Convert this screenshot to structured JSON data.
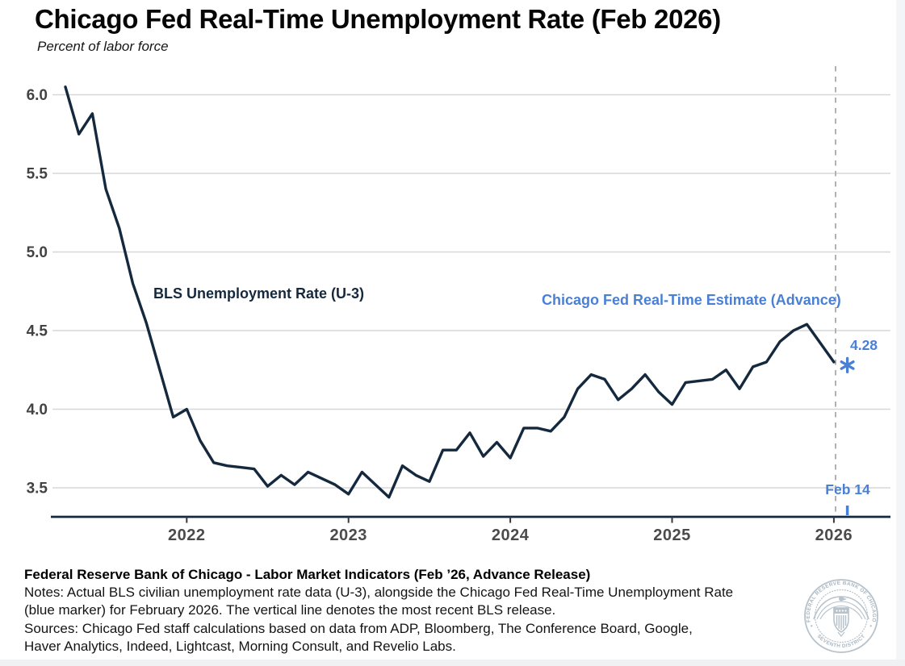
{
  "header": {
    "title": "Chicago Fed Real-Time Unemployment Rate (Feb 2026)",
    "subtitle": "Percent of labor force"
  },
  "chart_data": {
    "type": "line",
    "title": "Chicago Fed Real-Time Unemployment Rate (Feb 2026)",
    "ylabel": "Percent of labor force",
    "grid": "horizontal",
    "ylim": [
      3.3,
      6.2
    ],
    "y_tick_labels": [
      "3.5",
      "4.0",
      "4.5",
      "5.0",
      "5.5",
      "6.0"
    ],
    "x_tick_labels": [
      "2022",
      "2023",
      "2024",
      "2025",
      "2026"
    ],
    "series": [
      {
        "name": "BLS Unemployment Rate (U-3)",
        "type": "line",
        "color": "#15293e",
        "start_month": "2021-04",
        "end_month": "2026-01",
        "frequency": "monthly",
        "values": [
          6.05,
          5.75,
          5.88,
          5.4,
          5.15,
          4.8,
          4.55,
          4.25,
          3.95,
          4.0,
          3.8,
          3.66,
          3.64,
          3.63,
          3.62,
          3.51,
          3.58,
          3.52,
          3.6,
          3.56,
          3.52,
          3.46,
          3.6,
          3.52,
          3.44,
          3.64,
          3.58,
          3.54,
          3.74,
          3.74,
          3.85,
          3.7,
          3.79,
          3.69,
          3.88,
          3.88,
          3.86,
          3.95,
          4.13,
          4.22,
          4.19,
          4.06,
          4.13,
          4.22,
          4.11,
          4.03,
          4.17,
          4.18,
          4.19,
          4.25,
          4.13,
          4.27,
          4.3,
          4.43,
          4.5,
          4.54,
          4.42,
          4.3
        ]
      },
      {
        "name": "Chicago Fed Real-Time Estimate (Advance)",
        "type": "point",
        "marker": "asterisk",
        "color": "#4a80d4",
        "x": "2026-02",
        "value": 4.28,
        "value_label": "4.28"
      }
    ],
    "vline": {
      "label": "Feb 14",
      "style": "dashed",
      "color": "#b1b1b1",
      "meaning": "most recent BLS release"
    }
  },
  "colors": {
    "line": "#15293e",
    "accent_blue": "#4a80d4",
    "grid": "#d7d7d7",
    "dashed": "#b1b1b1",
    "axis": "#15293e",
    "tick": "#383838"
  },
  "footer": {
    "heading": "Federal Reserve Bank of Chicago - Labor Market Indicators (Feb ’26, Advance Release)",
    "notes_line1": "Notes: Actual BLS civilian unemployment rate data (U-3), alongside the Chicago Fed Real-Time Unemployment Rate",
    "notes_line2": "(blue marker) for February 2026. The vertical line denotes the most recent BLS release.",
    "sources_line1": "Sources: Chicago Fed staff calculations based on data from ADP, Bloomberg, The Conference Board, Google,",
    "sources_line2": "Haver Analytics, Indeed, Lightcast, Morning Consult, and Revelio Labs."
  },
  "logo": {
    "ring_text_top": "FEDERAL RESERVE BANK OF CHICAGO",
    "ring_text_bottom": "SEVENTH DISTRICT",
    "color": "#b7c2cb"
  }
}
